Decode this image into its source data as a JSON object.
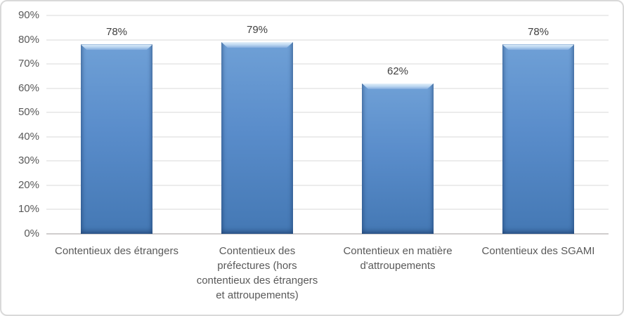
{
  "chart_data": {
    "type": "bar",
    "title": "",
    "categories": [
      "Contentieux des étrangers",
      "Contentieux des préfectures (hors contentieux des étrangers et attroupements)",
      "Contentieux en matière d'attroupements",
      "Contentieux des SGAMI"
    ],
    "values": [
      78,
      79,
      62,
      78
    ],
    "value_labels": [
      "78%",
      "79%",
      "62%",
      "78%"
    ],
    "ylim": [
      0,
      90
    ],
    "yticks": [
      0,
      10,
      20,
      30,
      40,
      50,
      60,
      70,
      80,
      90
    ],
    "ytick_labels": [
      "0%",
      "10%",
      "20%",
      "30%",
      "40%",
      "50%",
      "60%",
      "70%",
      "80%",
      "90%"
    ],
    "grid": true,
    "legend": "none",
    "colors": {
      "bar_fill": "#598CCA",
      "bar_fill_top": "#6FA0D6",
      "bar_fill_bottom": "#4478B4",
      "bar_bevel_highlight": "#E3EFFA",
      "gridline": "#D9D9D9",
      "axis_line": "#D0CECE",
      "tick_text": "#595959",
      "value_text": "#404040",
      "frame_border": "#D9D9D9",
      "background": "#FFFFFF"
    }
  }
}
